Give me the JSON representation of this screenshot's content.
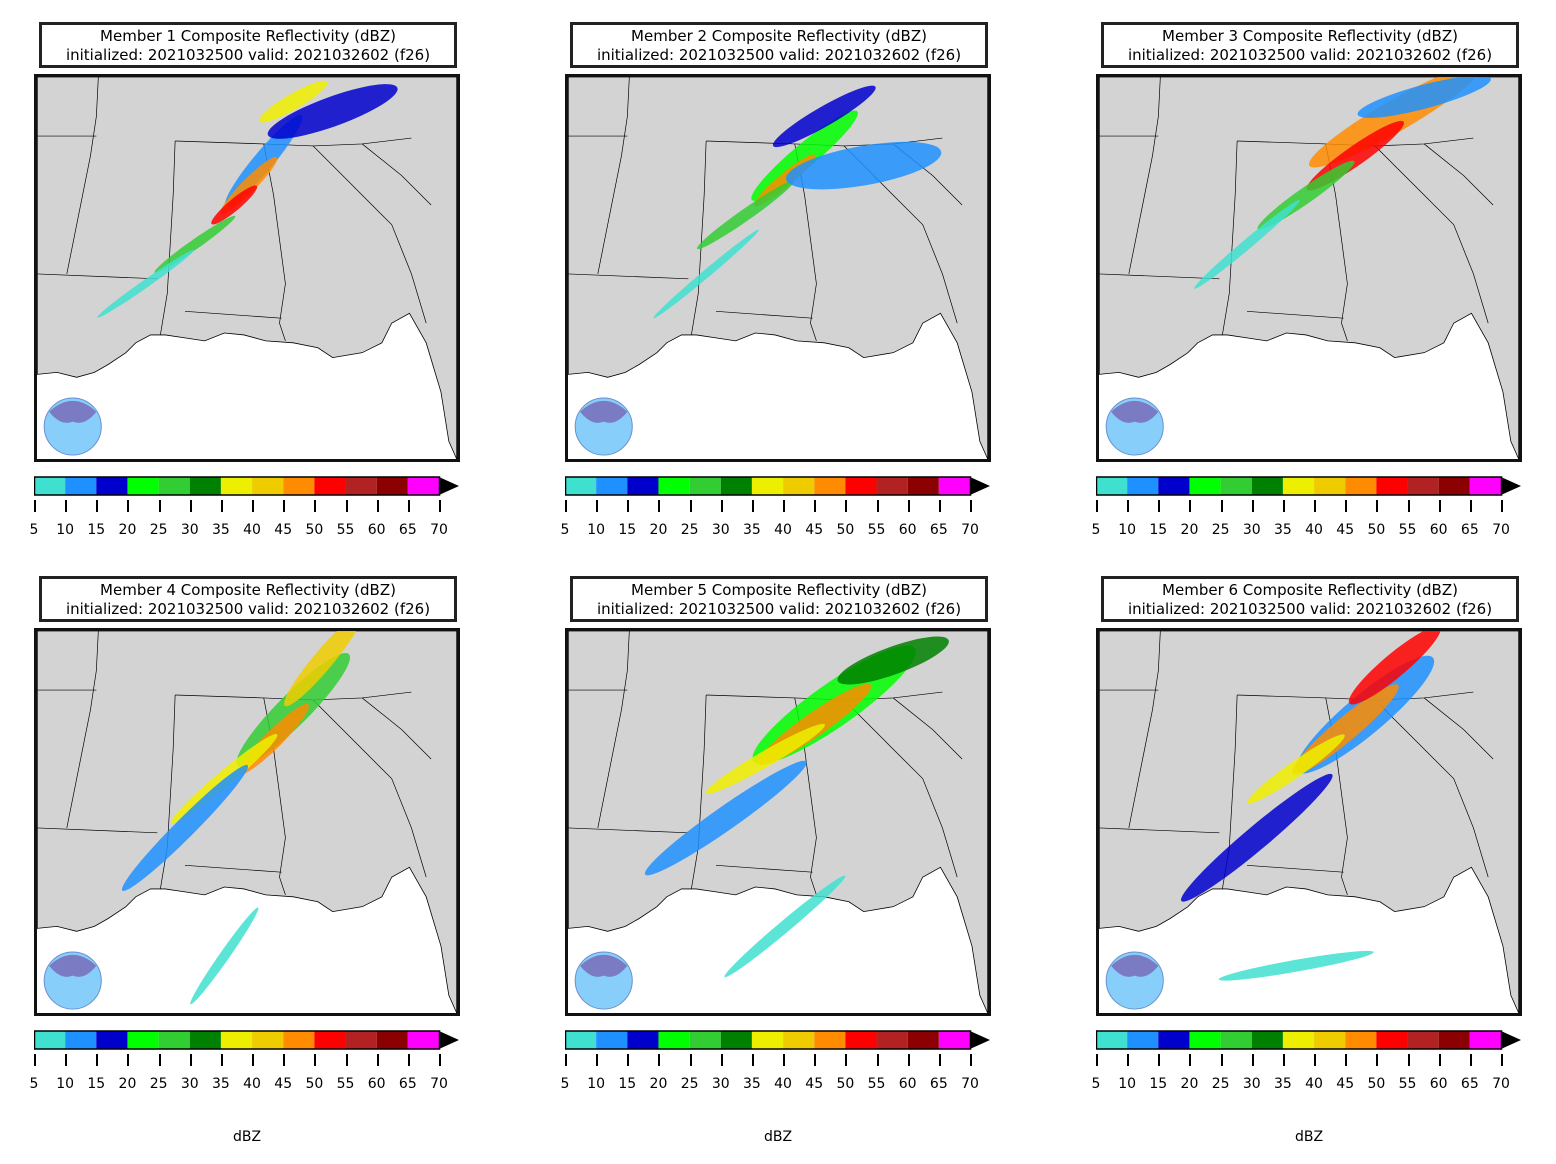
{
  "panels": [
    {
      "title_line1": "Member 1 Composite Reflectivity (dBZ)",
      "title_line2": "initialized: 2021032500 valid: 2021032602 (f26)",
      "unit_label": ""
    },
    {
      "title_line1": "Member 2 Composite Reflectivity (dBZ)",
      "title_line2": "initialized: 2021032500 valid: 2021032602 (f26)",
      "unit_label": ""
    },
    {
      "title_line1": "Member 3 Composite Reflectivity (dBZ)",
      "title_line2": "initialized: 2021032500 valid: 2021032602 (f26)",
      "unit_label": ""
    },
    {
      "title_line1": "Member 4 Composite Reflectivity (dBZ)",
      "title_line2": "initialized: 2021032500 valid: 2021032602 (f26)",
      "unit_label": "dBZ"
    },
    {
      "title_line1": "Member 5 Composite Reflectivity (dBZ)",
      "title_line2": "initialized: 2021032500 valid: 2021032602 (f26)",
      "unit_label": "dBZ"
    },
    {
      "title_line1": "Member 6 Composite Reflectivity (dBZ)",
      "title_line2": "initialized: 2021032500 valid: 2021032602 (f26)",
      "unit_label": "dBZ"
    }
  ],
  "colorbar": {
    "ticks": [
      "5",
      "10",
      "15",
      "20",
      "25",
      "30",
      "35",
      "40",
      "45",
      "50",
      "55",
      "60",
      "65",
      "70"
    ],
    "colors": [
      "#40e0d0",
      "#1e90ff",
      "#0000cd",
      "#00ff00",
      "#32cd32",
      "#008000",
      "#eeee00",
      "#eecc00",
      "#ff8c00",
      "#ff0000",
      "#b22222",
      "#8b0000",
      "#ff00ff"
    ],
    "extend_color": "#000000"
  },
  "map_colors": {
    "land": "#d3d3d3",
    "water": "#ffffff",
    "border": "#000000"
  },
  "logo": "noaa-logo"
}
